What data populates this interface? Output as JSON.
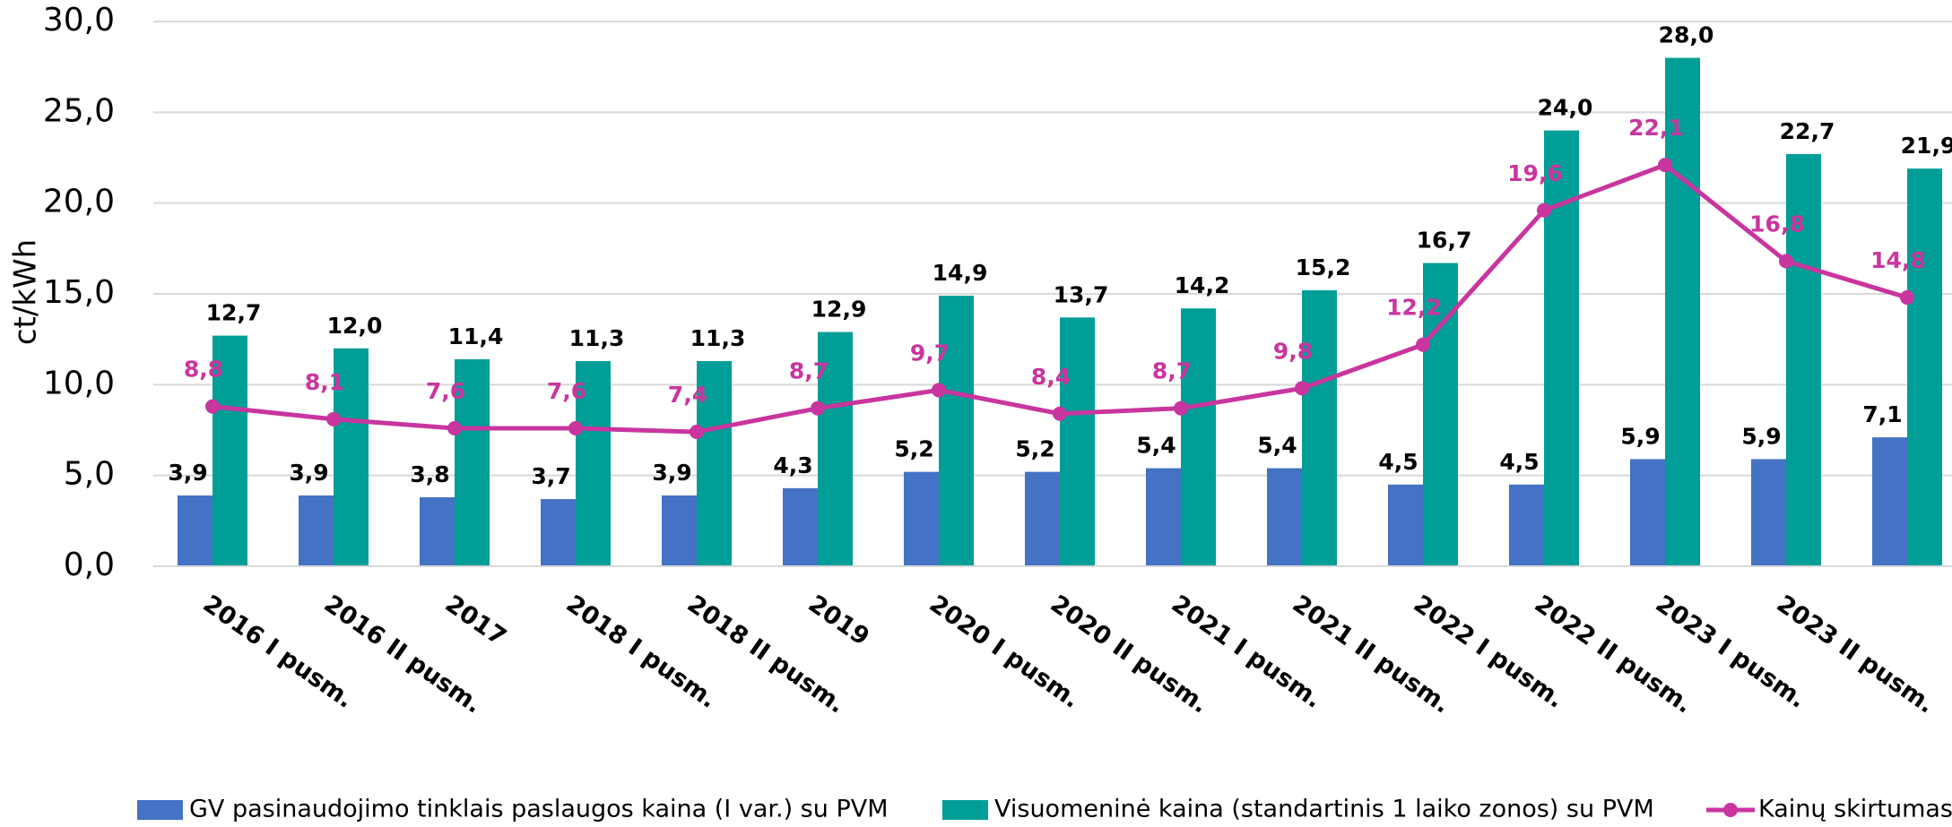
{
  "chart_data": {
    "type": "bar",
    "y_label": "ct/kWh",
    "categories": [
      "2016  I pusm.",
      "2016 II pusm.",
      "2017",
      "2018 I pusm.",
      "2018  II pusm.",
      "2019",
      "2020 I pusm.",
      "2020 II pusm.",
      "2021 I pusm.",
      "2021 II pusm.",
      "2022 I pusm.",
      "2022 II pusm.",
      "2023 I pusm.",
      "2023 II pusm.",
      null
    ],
    "series": [
      {
        "name": "GV pasinaudojimo tinklais paslaugos kaina (I var.) su PVM",
        "type": "bar",
        "color": "#4472c4",
        "values": [
          3.9,
          3.9,
          3.8,
          3.7,
          3.9,
          4.3,
          5.2,
          5.2,
          5.4,
          5.4,
          4.5,
          4.5,
          5.9,
          5.9,
          7.1
        ],
        "value_labels": [
          "3,9",
          "3,9",
          "3,8",
          "3,7",
          "3,9",
          "4,3",
          "5,2",
          "5,2",
          "5,4",
          "5,4",
          "4,5",
          "4,5",
          "5,9",
          "5,9",
          "7,1"
        ]
      },
      {
        "name": "Visuomeninė kaina (standartinis 1 laiko zonos) su PVM",
        "type": "bar",
        "color": "#009e96",
        "values": [
          12.7,
          12.0,
          11.4,
          11.3,
          11.3,
          12.9,
          14.9,
          13.7,
          14.2,
          15.2,
          16.7,
          24.0,
          28.0,
          22.7,
          21.9
        ],
        "value_labels": [
          "12,7",
          "12,0",
          "11,4",
          "11,3",
          "11,3",
          "12,9",
          "14,9",
          "13,7",
          "14,2",
          "15,2",
          "16,7",
          "24,0",
          "28,0",
          "22,7",
          "21,9"
        ]
      },
      {
        "name": "Kainų skirtumas",
        "type": "line",
        "color": "#c9359f",
        "values": [
          8.8,
          8.1,
          7.6,
          7.6,
          7.4,
          8.7,
          9.7,
          8.4,
          8.7,
          9.8,
          12.2,
          19.6,
          22.1,
          16.8,
          14.8
        ],
        "value_labels": [
          "8,8",
          "8,1",
          "7,6",
          "7,6",
          "7,4",
          "8,7",
          "9,7",
          "8,4",
          "8,7",
          "9,8",
          "12,2",
          "19,6",
          "22,1",
          "16,8",
          "14,8"
        ]
      }
    ],
    "ylim": [
      0,
      30
    ],
    "yticks": [
      {
        "value": 0,
        "label": "0,0"
      },
      {
        "value": 5,
        "label": "5,0"
      },
      {
        "value": 10,
        "label": "10,0"
      },
      {
        "value": 15,
        "label": "15,0"
      },
      {
        "value": 20,
        "label": "20,0"
      },
      {
        "value": 25,
        "label": "25,0"
      },
      {
        "value": 30,
        "label": "30,0"
      }
    ],
    "grid": true
  }
}
